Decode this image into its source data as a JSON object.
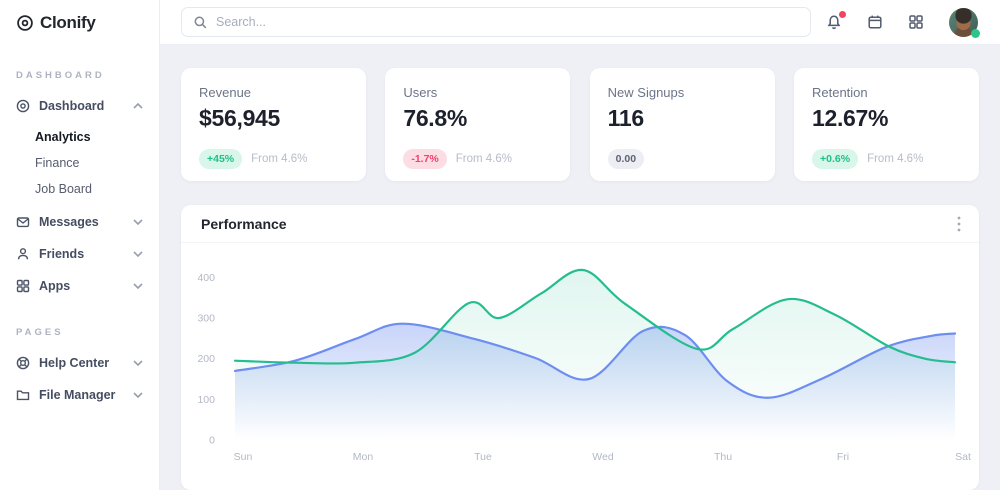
{
  "brand": {
    "name": "Clonify"
  },
  "topbar": {
    "search_placeholder": "Search...",
    "icons": [
      "bell-icon",
      "calendar-icon",
      "apps-grid-icon"
    ],
    "avatar_status": "online"
  },
  "sidebar": {
    "sections": [
      {
        "label": "DASHBOARD",
        "items": [
          {
            "label": "Dashboard",
            "icon": "dashboard-icon",
            "state": "expanded",
            "children": [
              {
                "label": "Analytics",
                "active": true
              },
              {
                "label": "Finance",
                "active": false
              },
              {
                "label": "Job Board",
                "active": false
              }
            ]
          },
          {
            "label": "Messages",
            "icon": "mail-icon",
            "state": "collapsed"
          },
          {
            "label": "Friends",
            "icon": "user-icon",
            "state": "collapsed"
          },
          {
            "label": "Apps",
            "icon": "grid-icon",
            "state": "collapsed"
          }
        ]
      },
      {
        "label": "PAGES",
        "items": [
          {
            "label": "Help Center",
            "icon": "lifebuoy-icon",
            "state": "collapsed"
          },
          {
            "label": "File Manager",
            "icon": "folder-icon",
            "state": "collapsed"
          }
        ]
      }
    ]
  },
  "stats": {
    "cards": [
      {
        "title": "Revenue",
        "value": "$56,945",
        "badge": "+45%",
        "badge_type": "up",
        "note": "From 4.6%"
      },
      {
        "title": "Users",
        "value": "76.8%",
        "badge": "-1.7%",
        "badge_type": "down",
        "note": "From 4.6%"
      },
      {
        "title": "New Signups",
        "value": "116",
        "badge": "0.00",
        "badge_type": "neutral",
        "note": ""
      },
      {
        "title": "Retention",
        "value": "12.67%",
        "badge": "+0.6%",
        "badge_type": "up",
        "note": "From 4.6%"
      }
    ]
  },
  "panel": {
    "title": "Performance",
    "menu_icon": "kebab-menu-icon"
  },
  "chart_data": {
    "type": "area",
    "title": "Performance",
    "categories": [
      "Sun",
      "Mon",
      "Tue",
      "Wed",
      "Thu",
      "Fri",
      "Sat"
    ],
    "x_domain": [
      0,
      6
    ],
    "ylim": [
      0,
      450
    ],
    "yticks": [
      0,
      100,
      200,
      300,
      400
    ],
    "grid": false,
    "legend": false,
    "series": [
      {
        "name": "series-blue",
        "color": "#6d8ef0",
        "fill_opacity_top": 0.38,
        "points": [
          [
            0,
            170
          ],
          [
            0.5,
            195
          ],
          [
            1,
            248
          ],
          [
            1.4,
            286
          ],
          [
            2,
            248
          ],
          [
            2.5,
            202
          ],
          [
            2.95,
            150
          ],
          [
            3.4,
            268
          ],
          [
            3.75,
            258
          ],
          [
            4.1,
            145
          ],
          [
            4.45,
            104
          ],
          [
            4.9,
            152
          ],
          [
            5.42,
            228
          ],
          [
            5.8,
            256
          ],
          [
            6,
            262
          ]
        ]
      },
      {
        "name": "series-green",
        "color": "#25bd8f",
        "fill_opacity_top": 0.14,
        "points": [
          [
            0,
            195
          ],
          [
            0.5,
            190
          ],
          [
            1,
            190
          ],
          [
            1.5,
            215
          ],
          [
            1.95,
            337
          ],
          [
            2.2,
            300
          ],
          [
            2.55,
            360
          ],
          [
            2.9,
            418
          ],
          [
            3.25,
            335
          ],
          [
            3.85,
            224
          ],
          [
            4.15,
            273
          ],
          [
            4.6,
            346
          ],
          [
            5,
            308
          ],
          [
            5.45,
            230
          ],
          [
            5.75,
            200
          ],
          [
            6,
            191
          ]
        ]
      }
    ]
  },
  "colors": {
    "background": "#eef0f5",
    "card": "#ffffff",
    "accent_up": "#1fc08a",
    "accent_down": "#f1416c",
    "chart_blue": "#6d8ef0",
    "chart_green": "#25bd8f",
    "notification_dot": "#ef4562",
    "status_online": "#2bc48a"
  }
}
